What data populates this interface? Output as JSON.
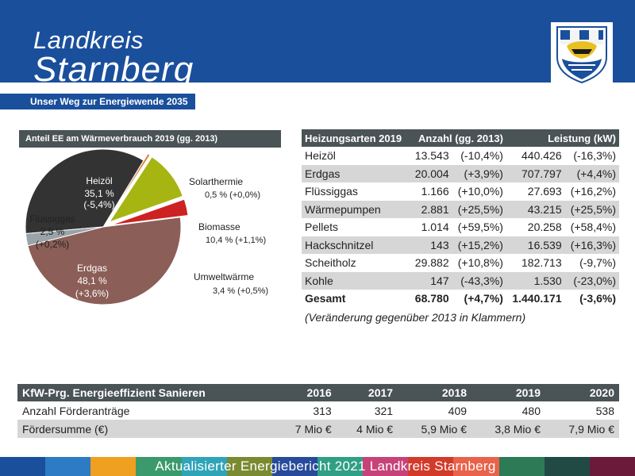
{
  "header": {
    "brand_line1": "Landkreis",
    "brand_line2": "Starnberg",
    "tagline": "Unser Weg zur Energiewende 2035"
  },
  "pie": {
    "title": "Anteil EE am Wärmeverbrauch 2019 (gg. 2013)",
    "labels": {
      "heizoel": [
        "Heizöl",
        "35,1 %",
        "(-5,4%)"
      ],
      "solar": [
        "Solarthermie",
        "0,5 % (+0,0%)"
      ],
      "biomasse": [
        "Biomasse",
        "10,4 % (+1,1%)"
      ],
      "umwelt": [
        "Umweltwärme",
        "3,4 % (+0,5%)"
      ],
      "erdgas": [
        "Erdgas",
        "48,1 %",
        "(+3,6%)"
      ],
      "fluessig": [
        "Flüssiggas",
        "2,5 %",
        "(+0,2%)"
      ]
    }
  },
  "chart_data": {
    "type": "pie",
    "title": "Anteil EE am Wärmeverbrauch 2019 (gg. 2013)",
    "categories": [
      "Heizöl",
      "Solarthermie",
      "Biomasse",
      "Umweltwärme",
      "Erdgas",
      "Flüssiggas"
    ],
    "values": [
      35.1,
      0.5,
      10.4,
      3.4,
      48.1,
      2.5
    ],
    "changes": [
      "-5,4%",
      "+0,0%",
      "+1,1%",
      "+0,5%",
      "+3,6%",
      "+0,2%"
    ],
    "colors": [
      "#333333",
      "#e07b2e",
      "#a6b512",
      "#cc2222",
      "#8b5e57",
      "#99a3a8"
    ],
    "exploded": [
      "Solarthermie",
      "Biomasse",
      "Umweltwärme"
    ]
  },
  "heating": {
    "headers": [
      "Heizungsarten 2019",
      "Anzahl (gg. 2013)",
      "Leistung (kW)"
    ],
    "rows": [
      {
        "name": "Heizöl",
        "count": "13.543",
        "count_change": "(-10,4%)",
        "power": "440.426",
        "power_change": "(-16,3%)"
      },
      {
        "name": "Erdgas",
        "count": "20.004",
        "count_change": "(+3,9%)",
        "power": "707.797",
        "power_change": "(+4,4%)"
      },
      {
        "name": "Flüssiggas",
        "count": "1.166",
        "count_change": "(+10,0%)",
        "power": "27.693",
        "power_change": "(+16,2%)"
      },
      {
        "name": "Wärmepumpen",
        "count": "2.881",
        "count_change": "(+25,5%)",
        "power": "43.215",
        "power_change": "(+25,5%)"
      },
      {
        "name": "Pellets",
        "count": "1.014",
        "count_change": "(+59,5%)",
        "power": "20.258",
        "power_change": "(+58,4%)"
      },
      {
        "name": "Hackschnitzel",
        "count": "143",
        "count_change": "(+15,2%)",
        "power": "16.539",
        "power_change": "(+16,3%)"
      },
      {
        "name": "Scheitholz",
        "count": "29.882",
        "count_change": "(+10,8%)",
        "power": "182.713",
        "power_change": "(-9,7%)"
      },
      {
        "name": "Kohle",
        "count": "147",
        "count_change": "(-43,3%)",
        "power": "1.530",
        "power_change": "(-23,0%)"
      }
    ],
    "total": {
      "name": "Gesamt",
      "count": "68.780",
      "count_change": "(+4,7%)",
      "power": "1.440.171",
      "power_change": "(-3,6%)"
    },
    "note": "(Veränderung gegenüber 2013 in Klammern)"
  },
  "kfw": {
    "title": "KfW-Prg. Energieeffizient Sanieren",
    "years": [
      "2016",
      "2017",
      "2018",
      "2019",
      "2020"
    ],
    "rows": [
      {
        "label": "Anzahl Förderanträge",
        "values": [
          "313",
          "321",
          "409",
          "480",
          "538"
        ]
      },
      {
        "label": "Fördersumme (€)",
        "values": [
          "7 Mio €",
          "4 Mio €",
          "5,9 Mio €",
          "3,8 Mio €",
          "7,9 Mio €"
        ]
      }
    ]
  },
  "footer": {
    "text": "Aktualisierter Energiebericht 2021 Landkreis Starnberg",
    "colors": [
      "#1a4f9c",
      "#2c7bc4",
      "#f0a020",
      "#3a9a6b",
      "#2fa4b8",
      "#7a8a30",
      "#274a9a",
      "#2f9f86",
      "#c8427a",
      "#d23a2a",
      "#e9624a",
      "#2d7a56",
      "#214a44",
      "#6b1a3a"
    ]
  }
}
